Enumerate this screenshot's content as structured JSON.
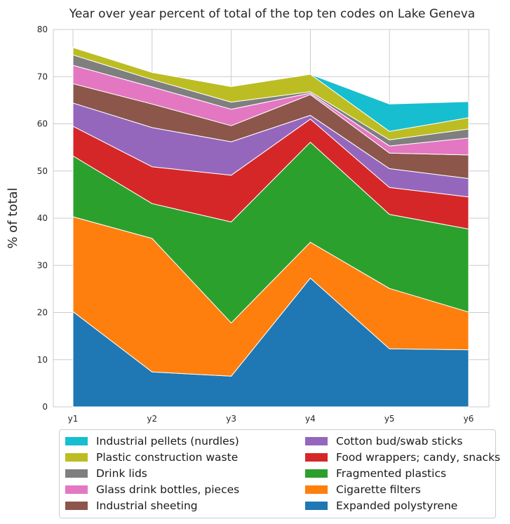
{
  "chart_data": {
    "type": "area",
    "stacked": true,
    "title": "Year over year percent of total of the top ten codes on Lake Geneva",
    "xlabel": "",
    "ylabel": "% of total",
    "categories": [
      "y1",
      "y2",
      "y3",
      "y4",
      "y5",
      "y6"
    ],
    "ylim": [
      0,
      80
    ],
    "yticks": [
      0,
      10,
      20,
      30,
      40,
      50,
      60,
      70,
      80
    ],
    "grid": true,
    "legend_position": "bottom",
    "series": [
      {
        "name": "Expanded polystyrene",
        "color": "#1f77b4",
        "values": [
          20.2,
          7.4,
          6.5,
          27.3,
          12.3,
          12.1
        ]
      },
      {
        "name": "Cigarette filters",
        "color": "#ff7f0e",
        "values": [
          20.1,
          28.3,
          11.3,
          7.6,
          12.8,
          8.0
        ]
      },
      {
        "name": "Fragmented plastics",
        "color": "#2ca02c",
        "values": [
          12.9,
          7.4,
          21.4,
          21.2,
          15.7,
          17.6
        ]
      },
      {
        "name": "Food wrappers; candy, snacks",
        "color": "#d62728",
        "values": [
          6.3,
          7.8,
          9.9,
          4.9,
          5.7,
          6.8
        ]
      },
      {
        "name": "Cotton bud/swab sticks",
        "color": "#9467bd",
        "values": [
          4.9,
          8.3,
          7.1,
          0.8,
          4.0,
          3.9
        ]
      },
      {
        "name": "Industrial sheeting",
        "color": "#8c564b",
        "values": [
          4.1,
          5.0,
          3.4,
          4.4,
          3.3,
          5.0
        ]
      },
      {
        "name": "Glass drink bottles, pieces",
        "color": "#e377c2",
        "values": [
          3.9,
          3.6,
          3.5,
          0.3,
          1.5,
          3.6
        ]
      },
      {
        "name": "Drink lids",
        "color": "#7f7f7f",
        "values": [
          2.2,
          1.6,
          1.5,
          0.3,
          1.3,
          1.9
        ]
      },
      {
        "name": "Plastic construction waste",
        "color": "#bcbd22",
        "values": [
          1.6,
          1.5,
          3.3,
          3.7,
          1.8,
          2.4
        ]
      },
      {
        "name": "Industrial pellets (nurdles)",
        "color": "#17becf",
        "values": [
          0,
          0,
          0,
          0,
          5.8,
          3.4
        ]
      }
    ],
    "legend_order": [
      "Industrial pellets (nurdles)",
      "Plastic construction waste",
      "Drink lids",
      "Glass drink bottles, pieces",
      "Industrial sheeting",
      "Cotton bud/swab sticks",
      "Food wrappers; candy, snacks",
      "Fragmented plastics",
      "Cigarette filters",
      "Expanded polystyrene"
    ]
  }
}
